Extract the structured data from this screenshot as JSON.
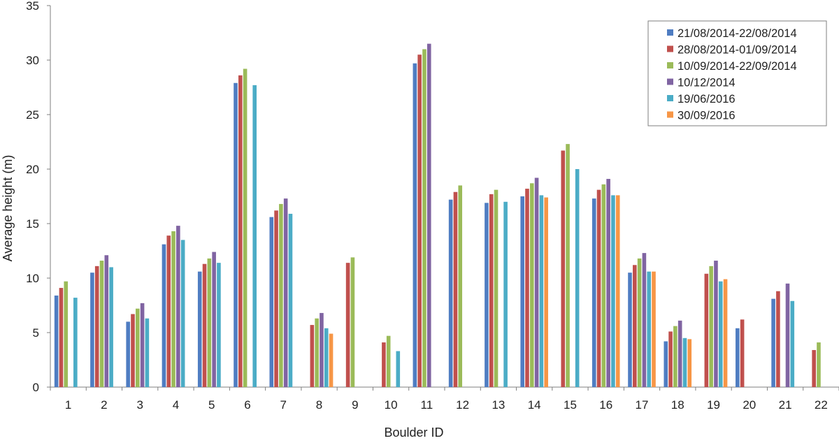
{
  "chart_data": {
    "type": "bar",
    "title": "",
    "xlabel": "Boulder ID",
    "ylabel": "Average height (m)",
    "ylim": [
      0,
      35
    ],
    "yticks": [
      0,
      5,
      10,
      15,
      20,
      25,
      30,
      35
    ],
    "grid": false,
    "legend_position": "top-right",
    "categories": [
      "1",
      "2",
      "3",
      "4",
      "5",
      "6",
      "7",
      "8",
      "9",
      "10",
      "11",
      "12",
      "13",
      "14",
      "15",
      "16",
      "17",
      "18",
      "19",
      "20",
      "21",
      "22"
    ],
    "series": [
      {
        "name": "21/08/2014-22/08/2014",
        "color": "#4f7dc2",
        "values": [
          8.4,
          10.5,
          6.0,
          13.1,
          10.6,
          27.9,
          15.6,
          null,
          null,
          null,
          29.7,
          17.2,
          16.9,
          17.5,
          null,
          17.3,
          10.5,
          4.2,
          null,
          5.4,
          8.1,
          null
        ]
      },
      {
        "name": "28/08/2014-01/09/2014",
        "color": "#c0504d",
        "values": [
          9.1,
          11.1,
          6.7,
          13.9,
          11.3,
          28.6,
          16.2,
          5.7,
          11.4,
          4.1,
          30.5,
          17.9,
          17.7,
          18.2,
          21.7,
          18.1,
          11.2,
          5.1,
          10.4,
          6.2,
          8.8,
          3.4
        ]
      },
      {
        "name": "10/09/2014-22/09/2014",
        "color": "#9bbb59",
        "values": [
          9.7,
          11.6,
          7.2,
          14.3,
          11.8,
          29.2,
          16.8,
          6.3,
          11.9,
          4.7,
          31.0,
          18.5,
          18.1,
          18.7,
          22.3,
          18.6,
          11.8,
          5.6,
          11.1,
          null,
          null,
          4.1
        ]
      },
      {
        "name": "10/12/2014",
        "color": "#8064a2",
        "values": [
          null,
          12.1,
          7.7,
          14.8,
          12.4,
          null,
          17.3,
          6.8,
          null,
          null,
          31.5,
          null,
          null,
          19.2,
          null,
          19.1,
          12.3,
          6.1,
          11.6,
          null,
          9.5,
          null
        ]
      },
      {
        "name": "19/06/2016",
        "color": "#4bacc6",
        "values": [
          8.2,
          11.0,
          6.3,
          13.5,
          11.4,
          27.7,
          15.9,
          5.4,
          null,
          3.3,
          null,
          null,
          17.0,
          17.6,
          20.0,
          17.6,
          10.6,
          4.5,
          9.7,
          null,
          7.9,
          null
        ]
      },
      {
        "name": "30/09/2016",
        "color": "#f79646",
        "values": [
          null,
          null,
          null,
          null,
          null,
          null,
          null,
          4.9,
          null,
          null,
          null,
          null,
          null,
          17.4,
          null,
          17.6,
          10.6,
          4.4,
          9.9,
          null,
          null,
          null
        ]
      }
    ]
  }
}
